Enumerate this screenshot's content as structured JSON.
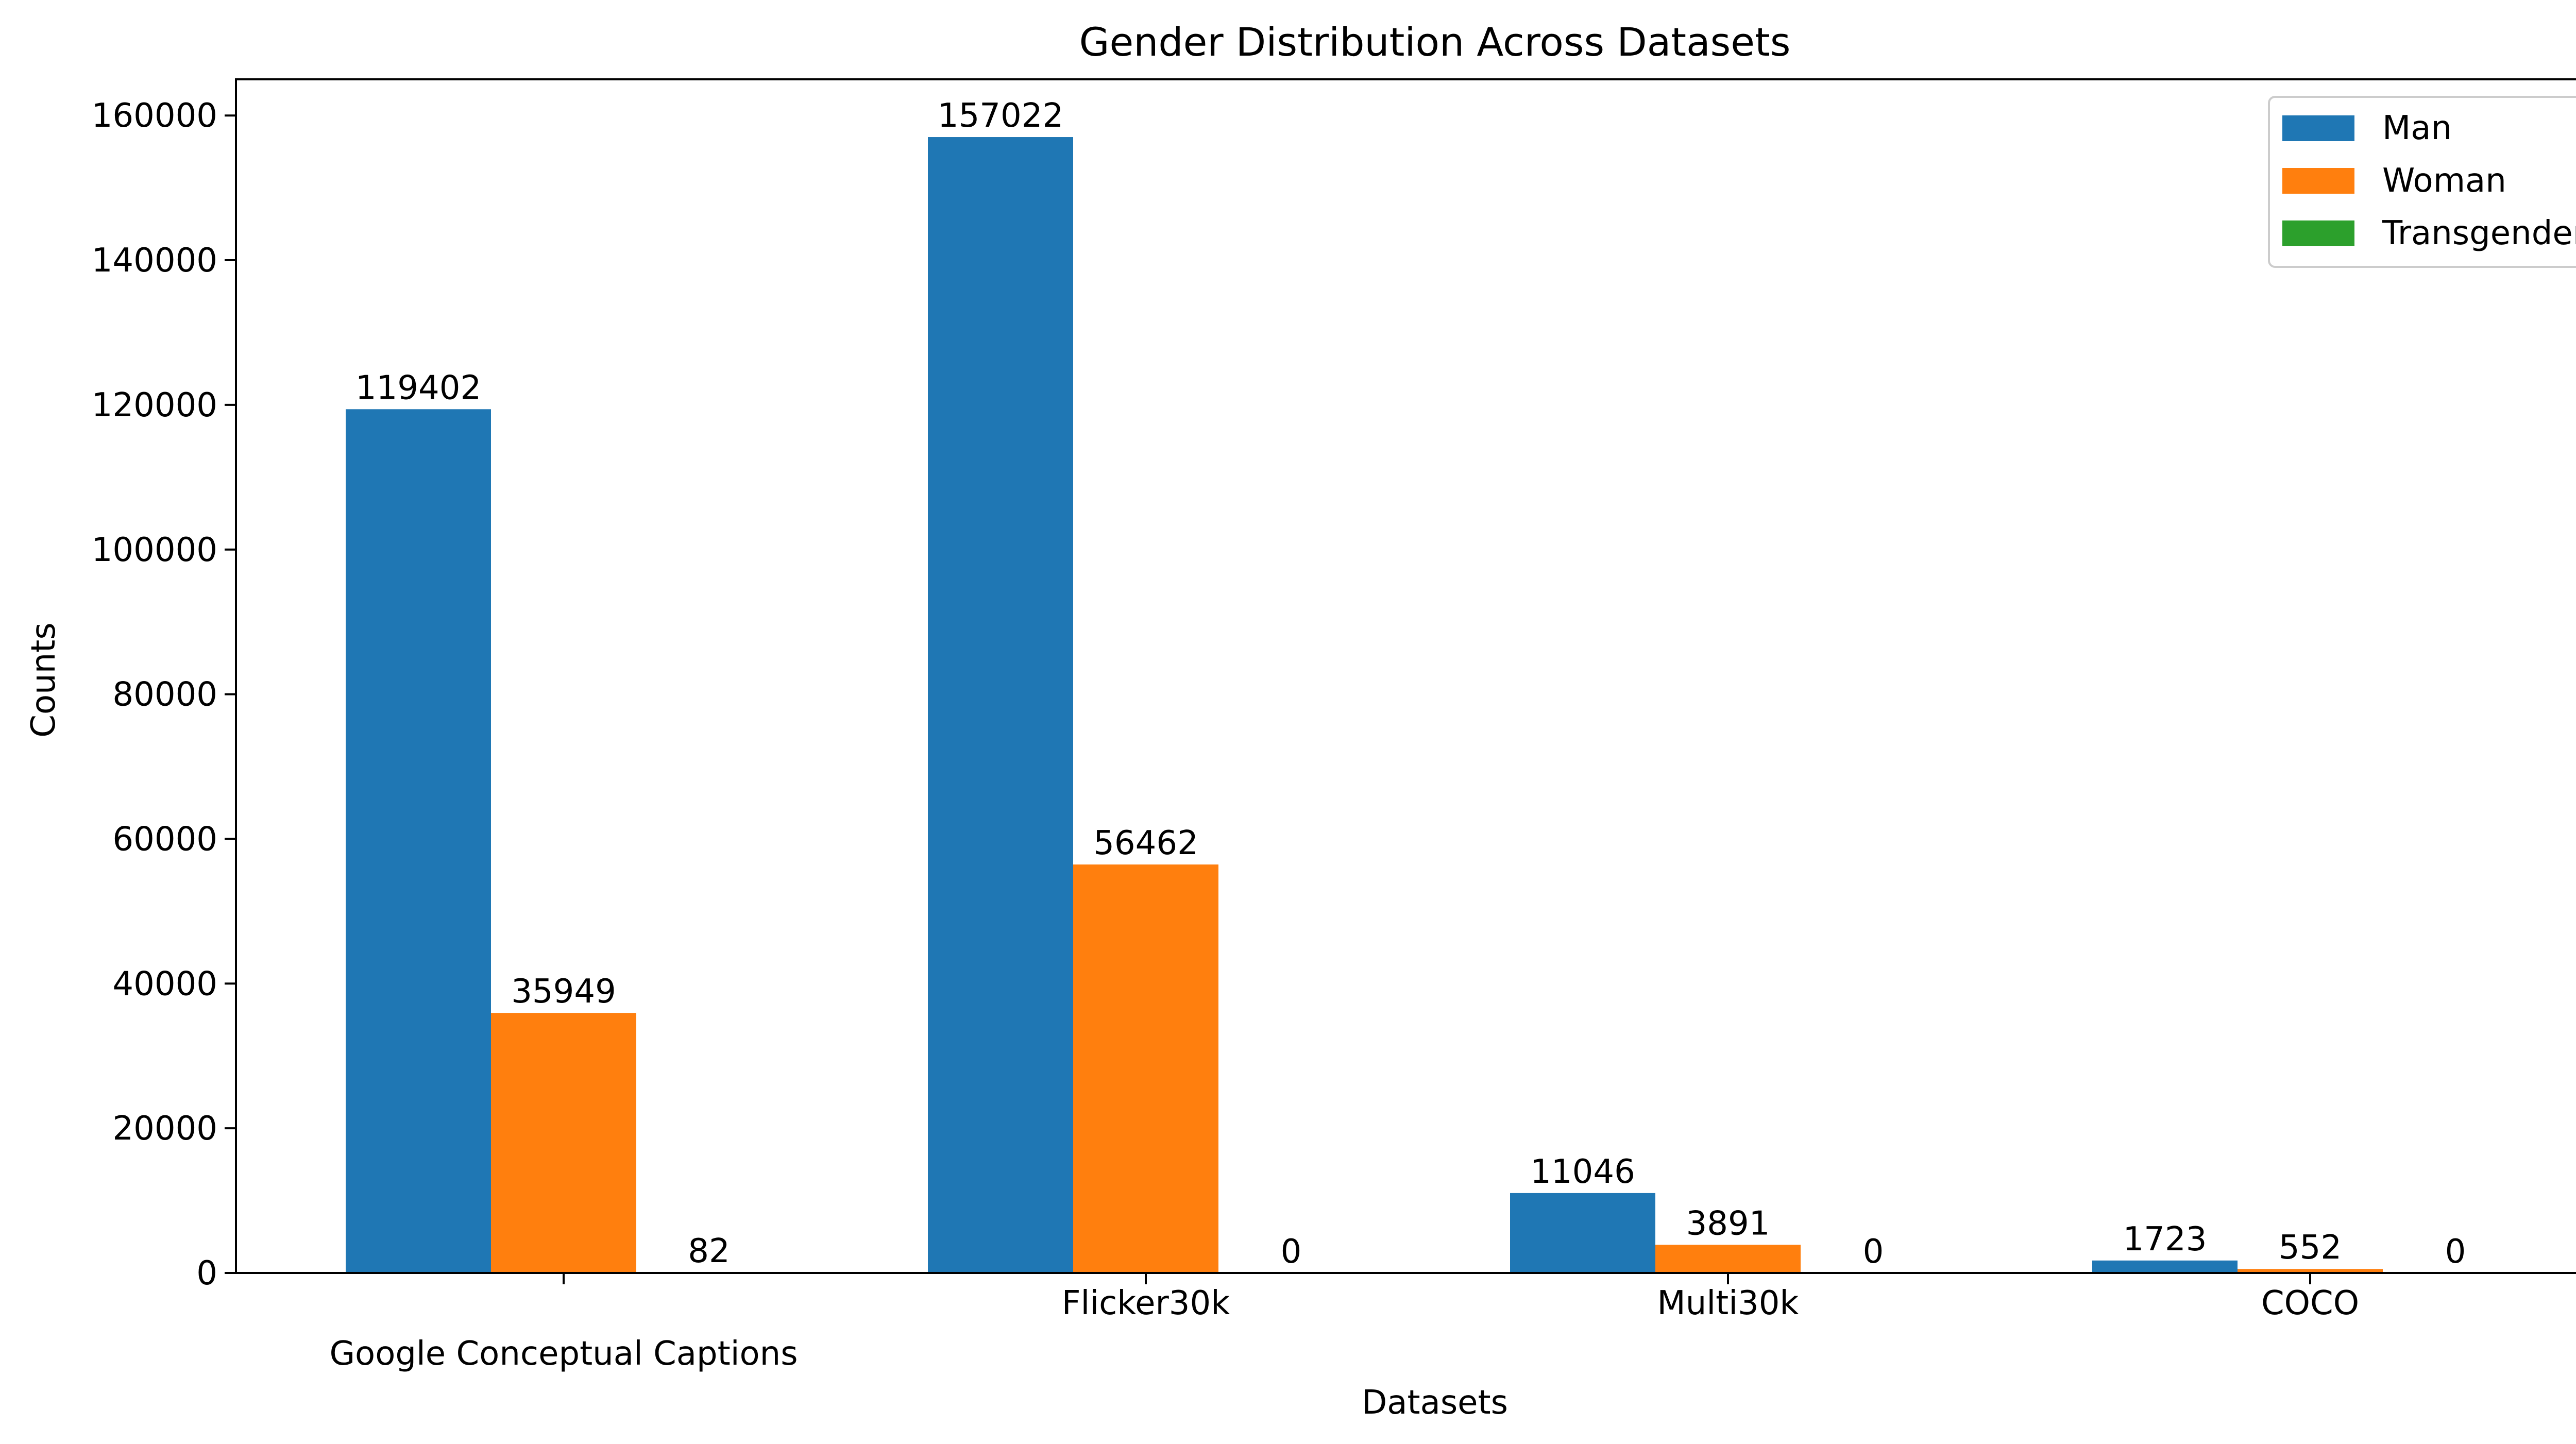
{
  "chart_data": {
    "type": "bar",
    "title": "Gender Distribution Across Datasets",
    "xlabel": "Datasets",
    "ylabel": "Counts",
    "categories": [
      "Google Conceptual Captions",
      "Flicker30k",
      "Multi30k",
      "COCO"
    ],
    "series": [
      {
        "name": "Man",
        "color": "#1f77b4",
        "values": [
          119402,
          157022,
          11046,
          1723
        ]
      },
      {
        "name": "Woman",
        "color": "#ff7f0e",
        "values": [
          35949,
          56462,
          3891,
          552
        ]
      },
      {
        "name": "Transgender",
        "color": "#2ca02c",
        "values": [
          82,
          0,
          0,
          0
        ]
      }
    ],
    "ylim": [
      0,
      165000
    ],
    "yticks": [
      0,
      20000,
      40000,
      60000,
      80000,
      100000,
      120000,
      140000,
      160000
    ],
    "grid": false,
    "legend_position": "top-right",
    "show_data_labels": true
  }
}
